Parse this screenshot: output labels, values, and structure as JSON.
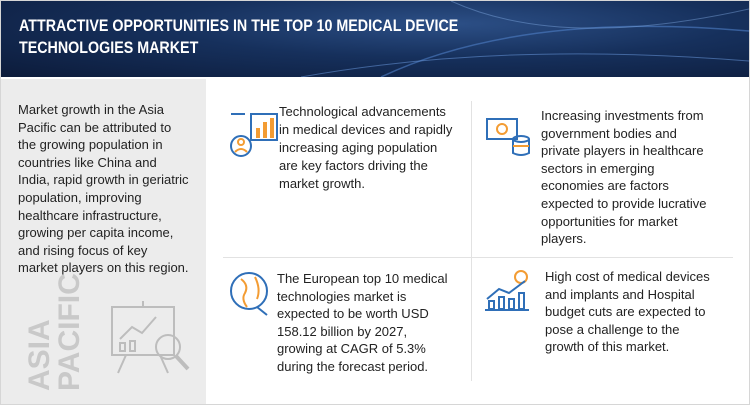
{
  "header": {
    "title": [
      "ATTRACTIVE OPPORTUNITIES IN THE TOP 10 MEDICAL DEVICE",
      "TECHNOLOGIES MARKET"
    ]
  },
  "sidebar": {
    "text": [
      "Market growth in the Asia",
      "Pacific can be attributed to",
      "the growing population in",
      "countries like China and",
      "India, rapid growth in geriatric",
      "population, improving",
      "healthcare infrastructure,",
      "growing per capita income,",
      "and rising focus of key",
      "market players on this region."
    ],
    "region": [
      "ASIA",
      "PACIFIC"
    ]
  },
  "blocks": [
    {
      "text": [
        "Technological advancements",
        "in medical devices and rapidly",
        "increasing aging population",
        "are key factors driving the",
        "market growth."
      ]
    },
    {
      "text": [
        "Increasing investments from",
        "government bodies and",
        "private players in healthcare",
        "sectors in emerging",
        "economies are factors",
        "expected to provide lucrative",
        "opportunities for market",
        "players."
      ]
    },
    {
      "text": [
        "The European top 10 medical",
        "technologies market is",
        "expected to be worth USD",
        "158.12 billion by 2027,",
        "growing at CAGR of 5.3%",
        "during the forecast period."
      ]
    },
    {
      "text": [
        "High cost of medical devices",
        "and implants and Hospital",
        "budget cuts are expected to",
        "pose a challenge to the",
        "growth of this market."
      ]
    }
  ]
}
